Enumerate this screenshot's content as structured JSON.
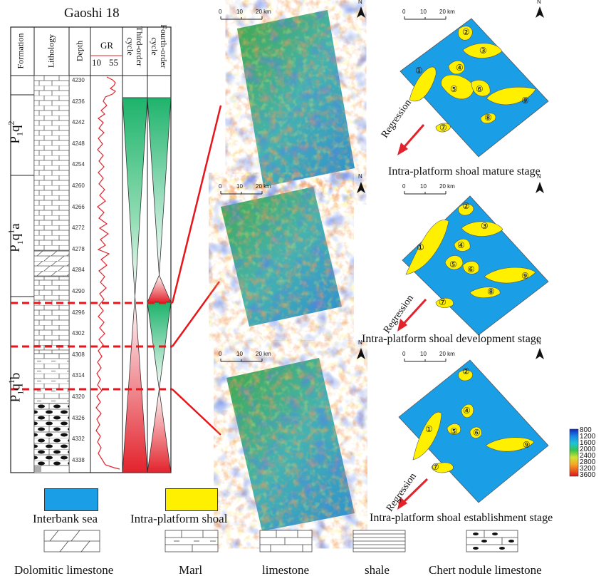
{
  "well": {
    "title": "Gaoshi 18",
    "headers": {
      "formation": "Formation",
      "lithology": "Lithology",
      "depth": "Depth",
      "gr": "GR",
      "gr_min": "10",
      "gr_max": "55",
      "third_order": "Third-order cycle",
      "fourth_order": "Fourth-order cycle"
    },
    "formations": [
      {
        "base": "P",
        "sub": "1",
        "rest": "q",
        "sup": "2"
      },
      {
        "base": "P",
        "sub": "1",
        "rest": "q",
        "sup": "1",
        "tail": "a"
      },
      {
        "base": "P",
        "sub": "1",
        "rest": "q",
        "sup": "1",
        "tail": "b"
      }
    ],
    "depths": [
      "4230",
      "4236",
      "4242",
      "4248",
      "4254",
      "4260",
      "4266",
      "4272",
      "4278",
      "4284",
      "4290",
      "4296",
      "4302",
      "4308",
      "4314",
      "4320",
      "4326",
      "4332",
      "4338"
    ]
  },
  "maps": {
    "scale": {
      "t0": "0",
      "t1": "10",
      "t2": "20 km"
    },
    "north": "N",
    "regression": "Regression",
    "stages": [
      {
        "label": "Intra-platform shoal mature stage"
      },
      {
        "label": "Intra-platform shoal development stage"
      },
      {
        "label": "Intra-platform shoal establishment stage"
      }
    ],
    "shoal_numbers": [
      "①",
      "②",
      "③",
      "④",
      "⑤",
      "⑥",
      "⑦",
      "⑧",
      "⑨"
    ],
    "colorbar": [
      "800",
      "1200",
      "1600",
      "2000",
      "2400",
      "2800",
      "3200",
      "3600"
    ]
  },
  "legend": {
    "interbank_sea": "Interbank sea",
    "intra_platform_shoal": "Intra-platform shoal",
    "dolomitic_limestone": "Dolomitic limestone",
    "marl": "Marl",
    "limestone": "limestone",
    "shale": "shale",
    "chert": "Chert nodule limestone"
  },
  "colors": {
    "sea": "#1a9ee6",
    "shoal": "#fff000",
    "correlation_line": "#e8161b",
    "cycle_green": "#1db36b",
    "cycle_red": "#e3222b"
  }
}
